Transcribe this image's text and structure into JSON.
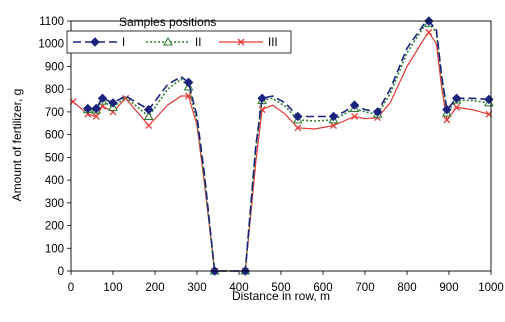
{
  "chart_data": {
    "type": "line",
    "title": "",
    "xlabel": "Distance in row, m",
    "ylabel": "Amount of fertilizer, g",
    "xlim": [
      0,
      1000
    ],
    "ylim": [
      0,
      1100
    ],
    "xticks": [
      0,
      100,
      200,
      300,
      400,
      500,
      600,
      700,
      800,
      900,
      1000
    ],
    "yticks": [
      0,
      100,
      200,
      300,
      400,
      500,
      600,
      700,
      800,
      900,
      1000,
      1100
    ],
    "grid": false,
    "legend": {
      "title": "Samples positions",
      "placement": "top-left"
    },
    "series": [
      {
        "name": "I",
        "color": "#1a237e",
        "marker": "diamond",
        "dash": "dashed",
        "points": [
          [
            40,
            715
          ],
          [
            60,
            715
          ],
          [
            75,
            760
          ],
          [
            100,
            740
          ],
          [
            130,
            770
          ],
          [
            185,
            710
          ],
          [
            230,
            820
          ],
          [
            262,
            855
          ],
          [
            280,
            830
          ],
          [
            300,
            680
          ],
          [
            318,
            420
          ],
          [
            342,
            0
          ],
          [
            415,
            0
          ],
          [
            440,
            550
          ],
          [
            455,
            760
          ],
          [
            480,
            770
          ],
          [
            510,
            740
          ],
          [
            540,
            680
          ],
          [
            580,
            680
          ],
          [
            625,
            680
          ],
          [
            650,
            700
          ],
          [
            675,
            730
          ],
          [
            700,
            710
          ],
          [
            730,
            700
          ],
          [
            760,
            800
          ],
          [
            800,
            980
          ],
          [
            840,
            1085
          ],
          [
            852,
            1100
          ],
          [
            870,
            1060
          ],
          [
            883,
            850
          ],
          [
            895,
            710
          ],
          [
            918,
            760
          ],
          [
            955,
            760
          ],
          [
            995,
            755
          ]
        ],
        "marked_x": [
          40,
          60,
          75,
          100,
          185,
          280,
          342,
          415,
          455,
          540,
          625,
          675,
          730,
          852,
          895,
          918,
          995
        ]
      },
      {
        "name": "II",
        "color": "#2e7d32",
        "marker": "triangle",
        "dash": "dotted",
        "points": [
          [
            40,
            710
          ],
          [
            60,
            708
          ],
          [
            75,
            748
          ],
          [
            100,
            720
          ],
          [
            130,
            765
          ],
          [
            185,
            680
          ],
          [
            230,
            800
          ],
          [
            262,
            845
          ],
          [
            280,
            810
          ],
          [
            300,
            660
          ],
          [
            318,
            400
          ],
          [
            342,
            0
          ],
          [
            415,
            0
          ],
          [
            440,
            540
          ],
          [
            455,
            750
          ],
          [
            480,
            760
          ],
          [
            510,
            725
          ],
          [
            540,
            665
          ],
          [
            580,
            660
          ],
          [
            625,
            665
          ],
          [
            650,
            690
          ],
          [
            675,
            715
          ],
          [
            700,
            700
          ],
          [
            730,
            690
          ],
          [
            760,
            780
          ],
          [
            800,
            960
          ],
          [
            840,
            1075
          ],
          [
            852,
            1090
          ],
          [
            870,
            1050
          ],
          [
            883,
            840
          ],
          [
            895,
            695
          ],
          [
            918,
            752
          ],
          [
            955,
            750
          ],
          [
            995,
            740
          ]
        ],
        "marked_x": [
          40,
          60,
          75,
          100,
          185,
          280,
          342,
          415,
          455,
          540,
          625,
          675,
          730,
          852,
          895,
          918,
          995
        ]
      },
      {
        "name": "III",
        "color": "#e53935",
        "marker": "x",
        "dash": "solid",
        "points": [
          [
            5,
            745
          ],
          [
            40,
            690
          ],
          [
            60,
            680
          ],
          [
            75,
            725
          ],
          [
            100,
            700
          ],
          [
            130,
            760
          ],
          [
            185,
            640
          ],
          [
            230,
            730
          ],
          [
            262,
            770
          ],
          [
            280,
            770
          ],
          [
            300,
            640
          ],
          [
            318,
            380
          ],
          [
            342,
            0
          ],
          [
            415,
            0
          ],
          [
            440,
            480
          ],
          [
            455,
            710
          ],
          [
            480,
            730
          ],
          [
            510,
            690
          ],
          [
            540,
            630
          ],
          [
            580,
            625
          ],
          [
            625,
            640
          ],
          [
            650,
            660
          ],
          [
            675,
            680
          ],
          [
            700,
            670
          ],
          [
            730,
            675
          ],
          [
            760,
            740
          ],
          [
            800,
            900
          ],
          [
            840,
            1020
          ],
          [
            852,
            1050
          ],
          [
            870,
            1000
          ],
          [
            883,
            800
          ],
          [
            895,
            665
          ],
          [
            918,
            720
          ],
          [
            955,
            710
          ],
          [
            995,
            690
          ]
        ],
        "marked_x": [
          5,
          40,
          60,
          75,
          100,
          130,
          185,
          280,
          342,
          415,
          455,
          540,
          625,
          675,
          730,
          852,
          895,
          918,
          995
        ]
      }
    ]
  }
}
